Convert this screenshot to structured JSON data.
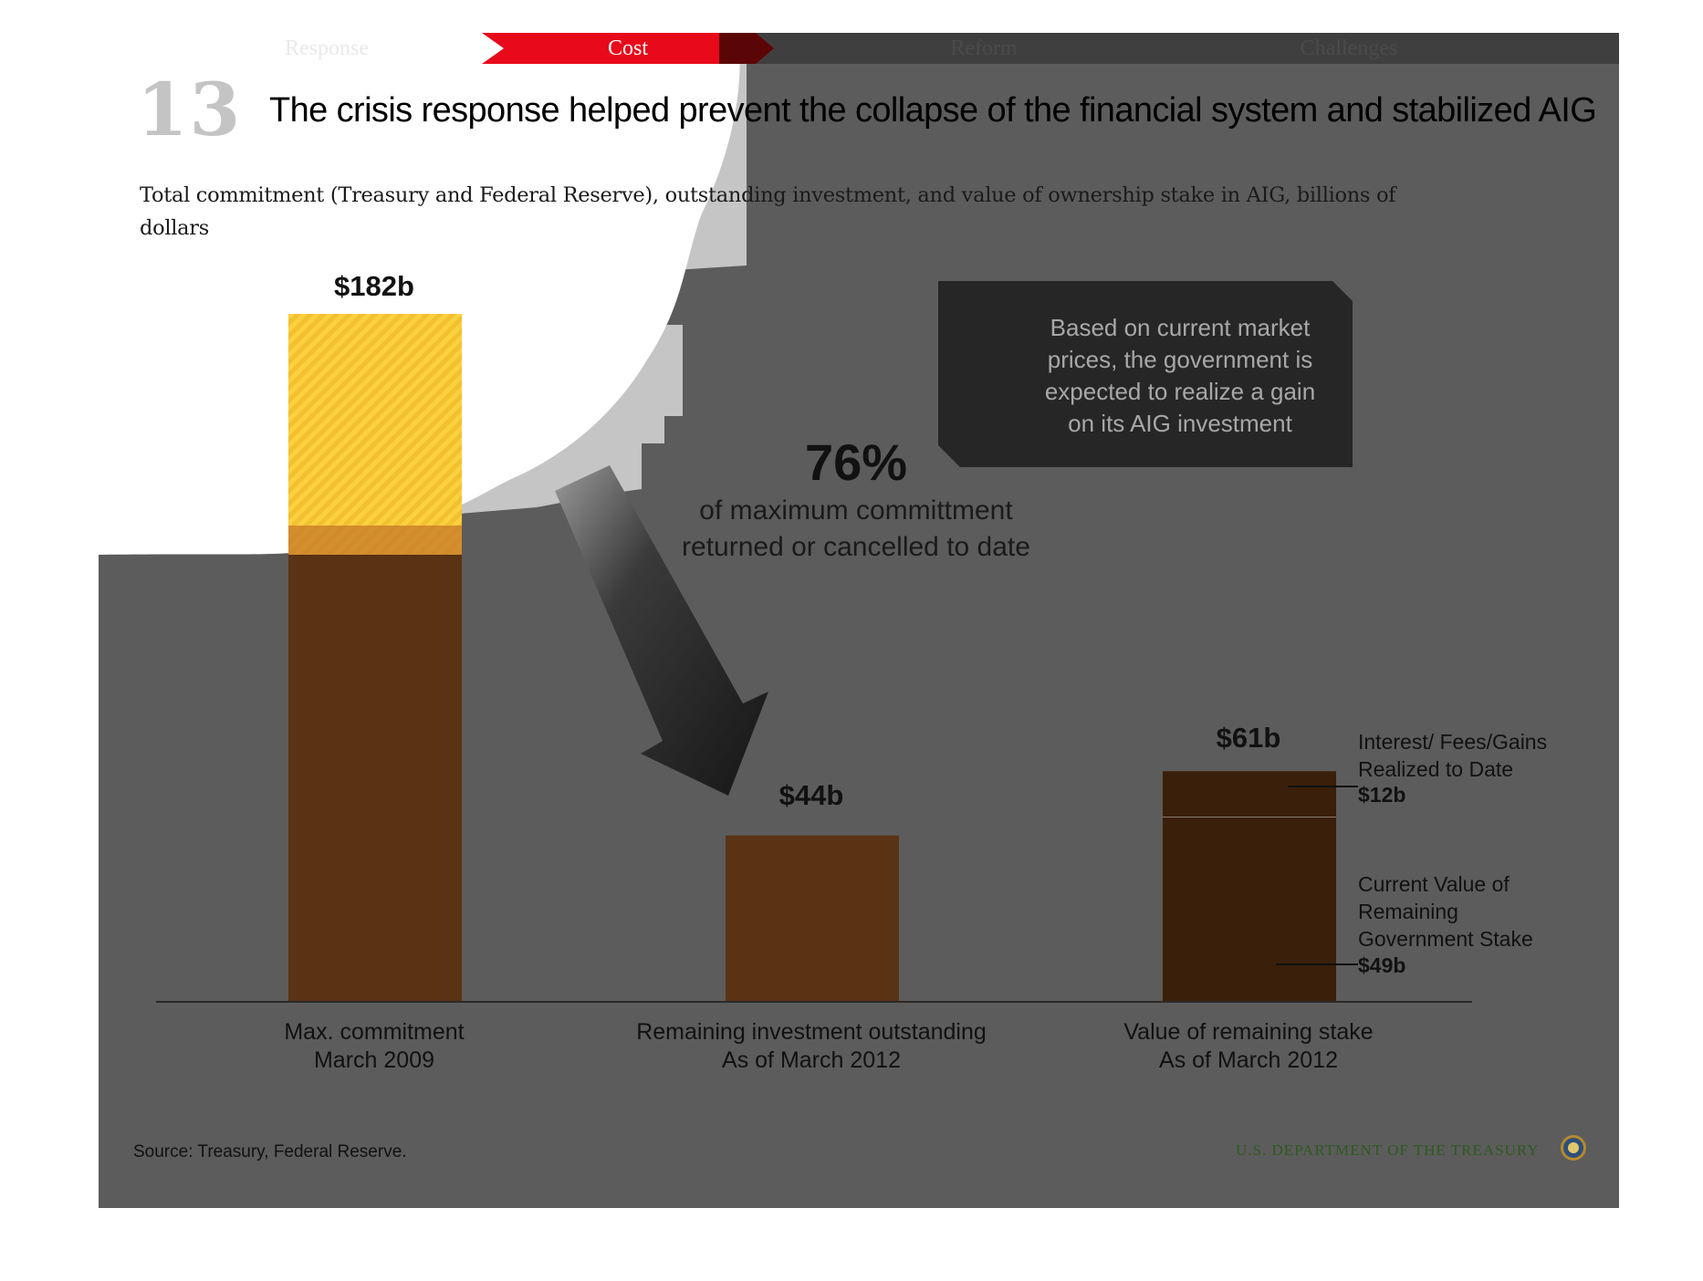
{
  "nav": {
    "tabs": [
      {
        "label": "Response"
      },
      {
        "label": "Cost"
      },
      {
        "label": "Reform"
      },
      {
        "label": "Challenges"
      }
    ],
    "active_color": "#e8091b"
  },
  "slide": {
    "number": "13",
    "title": "The crisis response helped prevent the collapse of the financial system and stabilized AIG",
    "subtitle": "Total commitment (Treasury and Federal Reserve), outstanding investment, and value of ownership stake in AIG, billions of dollars"
  },
  "highlight": {
    "percent": "76%",
    "caption": "of maximum committment\nreturned or cancelled to date"
  },
  "callout": {
    "text": "Based on current market prices, the government is expected to realize a gain on its AIG investment"
  },
  "chart_data": {
    "type": "bar",
    "units": "billions of dollars",
    "categories": [
      "Max. commitment\nMarch 2009",
      "Remaining investment outstanding\nAs of March 2012",
      "Value of remaining stake\nAs of March 2012"
    ],
    "values": [
      182,
      44,
      61
    ],
    "value_labels": [
      "$182b",
      "$44b",
      "$61b"
    ],
    "stacked_segments": {
      "category_index": 2,
      "segments": [
        {
          "note": "Current Value of\nRemaining\nGovernment Stake",
          "value": 49,
          "label": "$49b"
        },
        {
          "note": "Interest/ Fees/Gains\nRealized to Date",
          "value": 12,
          "label": "$12b"
        }
      ]
    },
    "ylim": [
      0,
      182
    ],
    "colors": {
      "bar": "#5a3314",
      "bar_dark": "#3a1f0a",
      "bar_highlight": "#fcd03f"
    }
  },
  "footer": {
    "source": "Source: Treasury, Federal Reserve.",
    "department": "U.S. DEPARTMENT OF THE TREASURY"
  }
}
